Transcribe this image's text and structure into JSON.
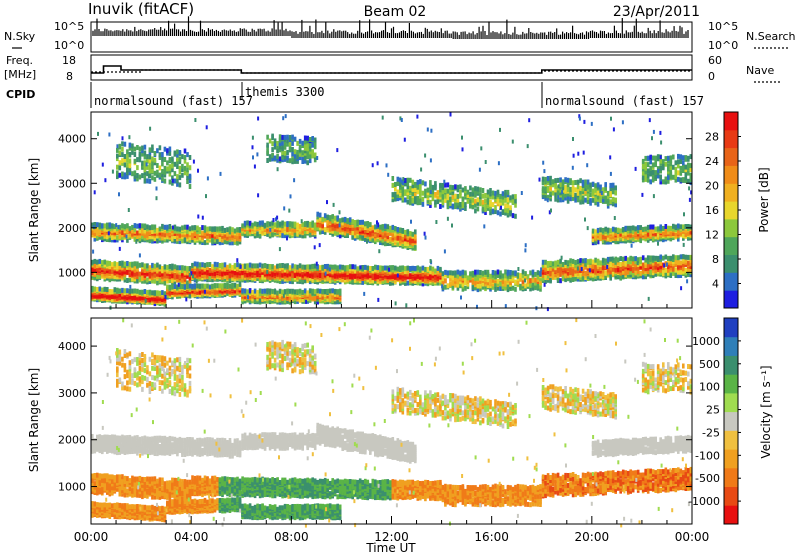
{
  "header": {
    "station": "Inuvik (fitACF)",
    "beam": "Beam 02",
    "date": "23/Apr/2011"
  },
  "panels": {
    "nsky": {
      "label": "N.Sky",
      "tick_top": "10^5",
      "tick_bottom": "10^0"
    },
    "nsearch": {
      "label": "N.Search",
      "tick_top": "10^5",
      "tick_bottom": "10^0"
    },
    "freq": {
      "label_line1": "Freq.",
      "label_line2": "[MHz]",
      "tick_top": "18",
      "tick_bottom": "8"
    },
    "nave": {
      "label": "Nave",
      "tick_top": "60",
      "tick_bottom": "0"
    },
    "cpid": {
      "label": "CPID",
      "segments": [
        {
          "name": "normalsound (fast) 157",
          "start_hour": 0
        },
        {
          "name": "themis 3300",
          "start_hour": 6
        },
        {
          "name": "normalsound (fast) 157",
          "start_hour": 18
        }
      ]
    }
  },
  "chart_data": [
    {
      "type": "heatmap",
      "name": "power",
      "ylabel": "Slant Range [km]",
      "xlabel": "",
      "ylim": [
        200,
        4600
      ],
      "xlim": [
        0,
        24
      ],
      "yticks": [
        "1000",
        "2000",
        "3000",
        "4000"
      ],
      "colorbar": {
        "label": "Power [dB]",
        "ticks": [
          "4",
          "8",
          "12",
          "16",
          "20",
          "24",
          "28"
        ],
        "colors": [
          "#1e1ee0",
          "#2d6fc4",
          "#3b8f6e",
          "#4fa65a",
          "#8cc83c",
          "#e8d62c",
          "#f0b020",
          "#f08c18",
          "#e86418",
          "#e83a14",
          "#e81010"
        ]
      }
    },
    {
      "type": "heatmap",
      "name": "velocity",
      "ylabel": "Slant Range [km]",
      "xlabel": "Time UT",
      "ylim": [
        200,
        4600
      ],
      "xlim": [
        0,
        24
      ],
      "yticks": [
        "1000",
        "2000",
        "3000",
        "4000"
      ],
      "xticks": [
        "00:00",
        "04:00",
        "08:00",
        "12:00",
        "16:00",
        "20:00",
        "00:00"
      ],
      "colorbar": {
        "label": "Velocity [m s⁻¹]",
        "ticks": [
          "1000",
          "500",
          "100",
          "25",
          "-25",
          "-100",
          "-500",
          "-1000"
        ],
        "colors": [
          "#2040c0",
          "#2f7fb8",
          "#3b8f6e",
          "#5ab446",
          "#a0dc50",
          "#c8c8c0",
          "#f0c040",
          "#f0a020",
          "#f07a18",
          "#e84a14",
          "#e81010"
        ]
      }
    }
  ]
}
